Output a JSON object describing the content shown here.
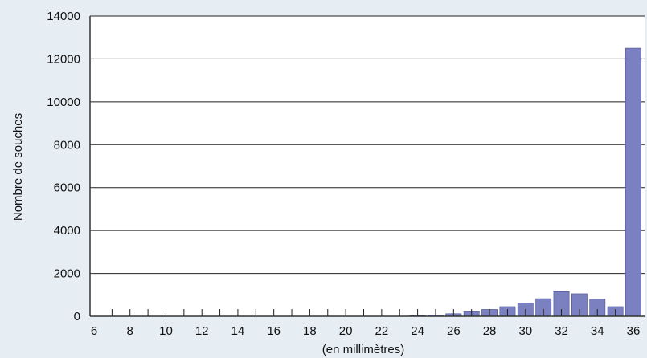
{
  "chart_data": {
    "type": "bar",
    "xlabel": "(en millimètres)",
    "ylabel": "Nombre de souches",
    "ylim": [
      0,
      14000
    ],
    "yticks": [
      0,
      2000,
      4000,
      6000,
      8000,
      10000,
      12000,
      14000
    ],
    "xlim": [
      6,
      36
    ],
    "xticks": [
      6,
      8,
      10,
      12,
      14,
      16,
      18,
      20,
      22,
      24,
      26,
      28,
      30,
      32,
      34,
      36
    ],
    "grid": "horizontal",
    "bar_color": "#7b80c0",
    "x": [
      24,
      25,
      26,
      27,
      28,
      29,
      30,
      31,
      32,
      33,
      34,
      35,
      36
    ],
    "values": [
      30,
      60,
      120,
      220,
      320,
      450,
      620,
      820,
      1150,
      1050,
      800,
      450,
      12500
    ]
  }
}
